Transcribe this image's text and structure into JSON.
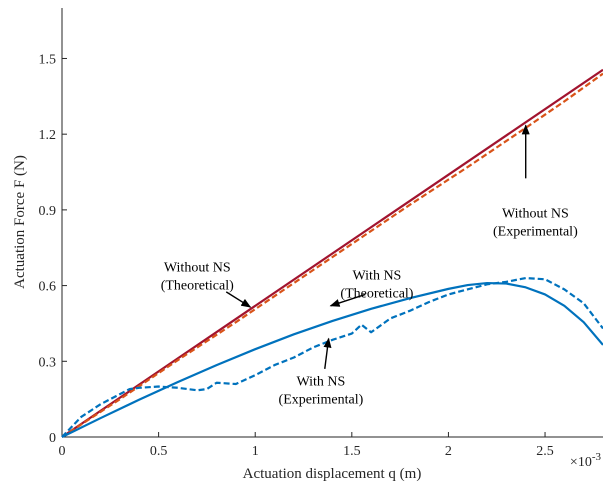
{
  "chart_data": {
    "type": "line",
    "xlabel": "Actuation displacement  q (m)",
    "ylabel": "Actuation Force  F (N)",
    "x_exponent_label": "×10",
    "x_exponent_power": "-3",
    "xlim": [
      0,
      0.0028
    ],
    "ylim": [
      0,
      1.7
    ],
    "xticks": [
      0,
      0.0005,
      0.001,
      0.0015,
      0.002,
      0.0025
    ],
    "xtick_labels": [
      "0",
      "0.5",
      "1",
      "1.5",
      "2",
      "2.5"
    ],
    "yticks": [
      0,
      0.3,
      0.6,
      0.9,
      1.2,
      1.5
    ],
    "ytick_labels": [
      "0",
      "0.3",
      "0.6",
      "0.9",
      "1.2",
      "1.5"
    ],
    "grid": false,
    "series": [
      {
        "color": "#a2142f",
        "style": "solid",
        "x": [
          0,
          0.0028
        ],
        "y": [
          0,
          1.455
        ]
      },
      {
        "color": "#d95319",
        "style": "dashed",
        "x": [
          0,
          0.0003,
          0.0006,
          0.0009,
          0.0012,
          0.0015,
          0.0018,
          0.0021,
          0.0024,
          0.0026,
          0.0028
        ],
        "y": [
          0,
          0.15,
          0.305,
          0.455,
          0.61,
          0.765,
          0.92,
          1.07,
          1.225,
          1.33,
          1.44
        ]
      },
      {
        "color": "#0072bd",
        "style": "solid",
        "x": [
          0,
          0.0002,
          0.0004,
          0.0006,
          0.0008,
          0.001,
          0.0012,
          0.0014,
          0.0016,
          0.0018,
          0.002,
          0.0021,
          0.0022,
          0.0023,
          0.0024,
          0.0025,
          0.0026,
          0.0027,
          0.0028
        ],
        "y": [
          0,
          0.075,
          0.148,
          0.218,
          0.285,
          0.348,
          0.407,
          0.46,
          0.508,
          0.55,
          0.587,
          0.602,
          0.61,
          0.608,
          0.593,
          0.565,
          0.52,
          0.455,
          0.365
        ]
      },
      {
        "color": "#0072bd",
        "style": "dashed",
        "x": [
          0,
          0.0001,
          0.0002,
          0.0003,
          0.00035,
          0.0004,
          0.0005,
          0.0006,
          0.0007,
          0.00075,
          0.0008,
          0.0009,
          0.001,
          0.0011,
          0.0012,
          0.0013,
          0.0014,
          0.0015,
          0.00155,
          0.0016,
          0.0017,
          0.0018,
          0.0019,
          0.002,
          0.0021,
          0.0022,
          0.0023,
          0.0024,
          0.0025,
          0.0026,
          0.0027,
          0.0028
        ],
        "y": [
          0,
          0.08,
          0.13,
          0.17,
          0.19,
          0.195,
          0.2,
          0.195,
          0.185,
          0.19,
          0.215,
          0.21,
          0.245,
          0.285,
          0.315,
          0.355,
          0.385,
          0.41,
          0.445,
          0.415,
          0.47,
          0.5,
          0.535,
          0.565,
          0.585,
          0.605,
          0.615,
          0.63,
          0.625,
          0.585,
          0.53,
          0.43
        ]
      }
    ],
    "annotations": [
      {
        "id": "without-ns-theoretical",
        "lines": [
          "Without NS",
          "(Theoretical)"
        ],
        "text_at": [
          0.0007,
          0.655
        ],
        "arrow_from": [
          0.00085,
          0.575
        ],
        "arrow_to": [
          0.000975,
          0.515
        ]
      },
      {
        "id": "with-ns-theoretical",
        "lines": [
          "With NS",
          "(Theoretical)"
        ],
        "text_at": [
          0.00163,
          0.625
        ],
        "arrow_from": [
          0.00157,
          0.565
        ],
        "arrow_to": [
          0.00139,
          0.52
        ]
      },
      {
        "id": "without-ns-experimental",
        "lines": [
          "Without NS",
          "(Experimental)"
        ],
        "text_at": [
          0.00245,
          0.87
        ],
        "arrow_from": [
          0.0024,
          1.025
        ],
        "arrow_to": [
          0.0024,
          1.235
        ]
      },
      {
        "id": "with-ns-experimental",
        "lines": [
          "With NS",
          "(Experimental)"
        ],
        "text_at": [
          0.00134,
          0.205
        ],
        "arrow_from": [
          0.00136,
          0.27
        ],
        "arrow_to": [
          0.00138,
          0.39
        ]
      }
    ]
  }
}
